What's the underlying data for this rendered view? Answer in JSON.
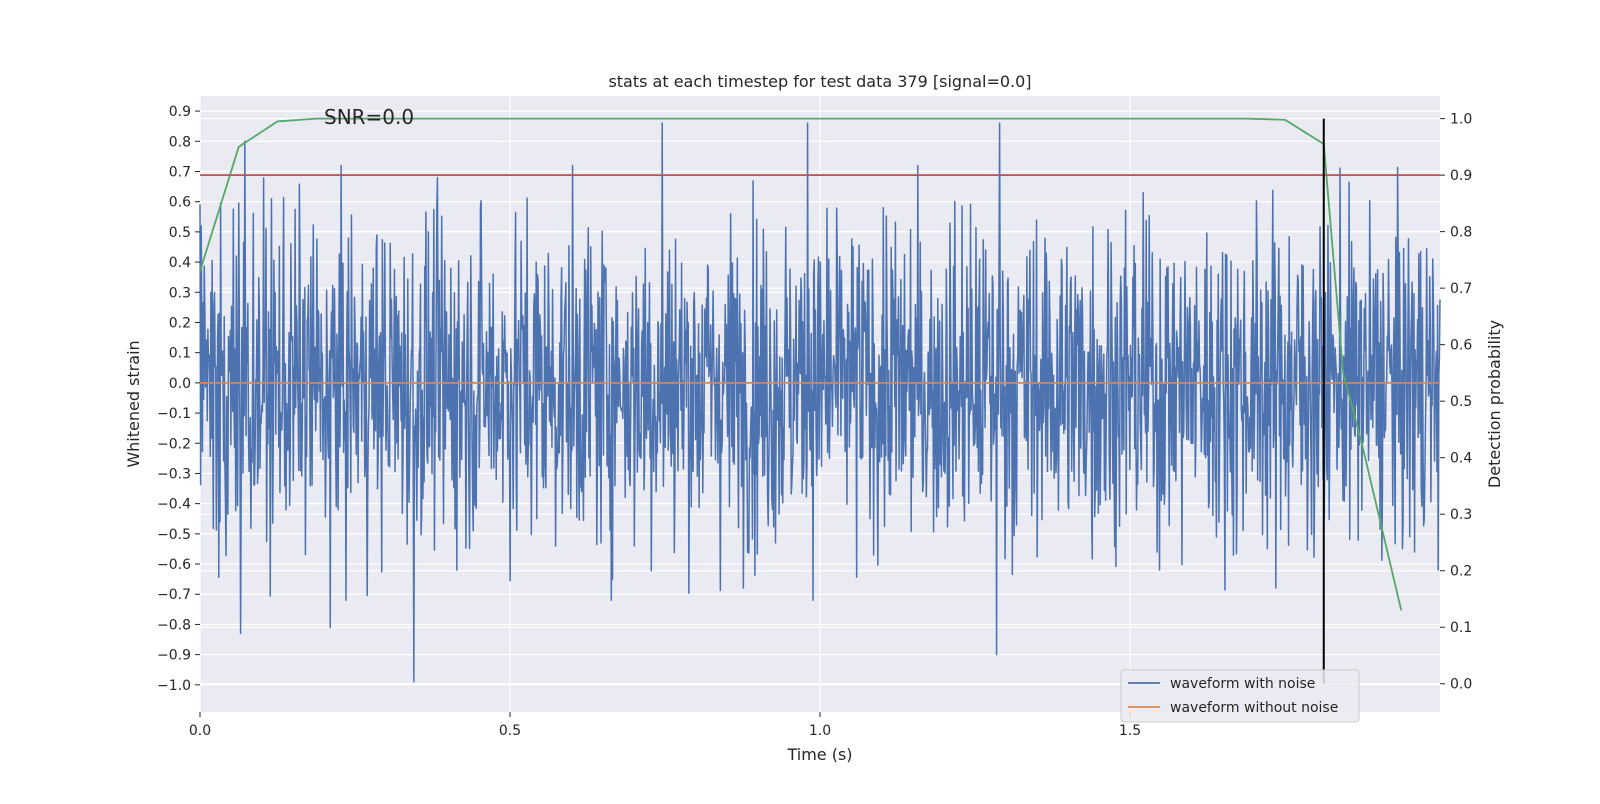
{
  "chart_data": {
    "type": "line",
    "title": "stats at each timestep for test data 379 [signal=0.0]",
    "annotation": "SNR=0.0",
    "xlabel": "Time (s)",
    "ylabel": "Whitened strain",
    "y2label": "Detection probability",
    "xlim": [
      0.0,
      2.0
    ],
    "ylim": [
      -1.09,
      0.95
    ],
    "y2lim": [
      -0.05,
      1.04
    ],
    "x_ticks": [
      0.0,
      0.5,
      1.0,
      1.5
    ],
    "x_tick_labels": [
      "0.0",
      "0.5",
      "1.0",
      "1.5"
    ],
    "y_ticks": [
      0.9,
      0.8,
      0.7,
      0.6,
      0.5,
      0.4,
      0.3,
      0.2,
      0.1,
      0.0,
      -0.1,
      -0.2,
      -0.3,
      -0.4,
      -0.5,
      -0.6,
      -0.7,
      -0.8,
      -0.9,
      -1.0
    ],
    "y_tick_labels": [
      "0.9",
      "0.8",
      "0.7",
      "0.6",
      "0.5",
      "0.4",
      "0.3",
      "0.2",
      "0.1",
      "0.0",
      "−0.1",
      "−0.2",
      "−0.3",
      "−0.4",
      "−0.5",
      "−0.6",
      "−0.7",
      "−0.8",
      "−0.9",
      "−1.0"
    ],
    "y2_ticks": [
      1.0,
      0.9,
      0.8,
      0.7,
      0.6,
      0.5,
      0.4,
      0.3,
      0.2,
      0.1,
      0.0
    ],
    "y2_tick_labels": [
      "1.0",
      "0.9",
      "0.8",
      "0.7",
      "0.6",
      "0.5",
      "0.4",
      "0.3",
      "0.2",
      "0.1",
      "0.0"
    ],
    "grid": true,
    "legend_position": "lower-right",
    "series": [
      {
        "name": "waveform with noise",
        "color": "#4c72b0",
        "axis": "left",
        "x_start": 0.0,
        "x_end": 2.0,
        "n_points": 2048,
        "amplitude_std": 0.28,
        "extremes": [
          {
            "x": 0.065,
            "y": -0.83
          },
          {
            "x": 0.072,
            "y": 0.8
          },
          {
            "x": 0.21,
            "y": -0.81
          },
          {
            "x": 0.345,
            "y": -0.99
          },
          {
            "x": 0.745,
            "y": 0.86
          },
          {
            "x": 0.98,
            "y": 0.86
          },
          {
            "x": 1.285,
            "y": -0.9
          },
          {
            "x": 1.29,
            "y": 0.86
          }
        ]
      },
      {
        "name": "waveform without noise",
        "color": "#dd8452",
        "axis": "left",
        "x": [
          0.0,
          2.0
        ],
        "y": [
          0.0,
          0.0
        ]
      },
      {
        "color": "#55a868",
        "axis": "right",
        "x": [
          0.0,
          0.0625,
          0.125,
          0.1875,
          0.25,
          0.5,
          1.0,
          1.5,
          1.6875,
          1.75,
          1.8125,
          1.8438,
          1.875,
          1.9375
        ],
        "y": [
          0.73,
          0.95,
          0.995,
          1.0,
          1.0,
          1.0,
          1.0,
          1.0,
          1.0,
          0.998,
          0.955,
          0.55,
          0.42,
          0.13
        ]
      }
    ],
    "threshold_line": {
      "axis": "right",
      "y": 0.9,
      "color": "#c44e52"
    },
    "vertical_marker": {
      "x": 1.8125,
      "y2_from": 0.0,
      "y2_to": 1.0,
      "color": "#000000"
    }
  }
}
